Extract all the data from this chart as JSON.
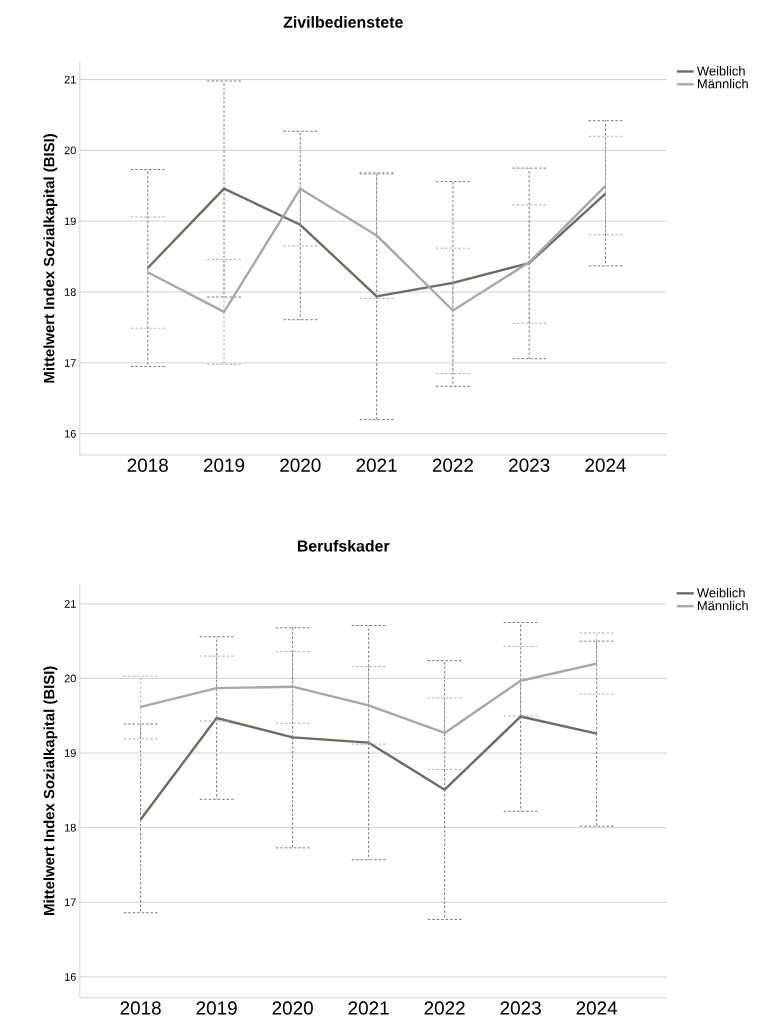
{
  "chart_data": [
    {
      "type": "line",
      "title": "Zivilbedienstete",
      "ylabel": "Mittelwert Index Sozialkapital (BISI)",
      "categories": [
        "2018",
        "2019",
        "2020",
        "2021",
        "2022",
        "2023",
        "2024"
      ],
      "series": [
        {
          "name": "Weiblich",
          "color": "#6b6e5e",
          "values": [
            18.34,
            19.46,
            18.95,
            17.94,
            18.13,
            18.41,
            19.39
          ],
          "errors": [
            [
              16.95,
              19.73
            ],
            [
              17.93,
              20.98
            ],
            [
              17.61,
              20.27
            ],
            [
              16.2,
              19.67
            ],
            [
              16.67,
              19.56
            ],
            [
              17.06,
              19.75
            ],
            [
              18.37,
              20.42
            ]
          ]
        },
        {
          "name": "Männlich",
          "color": "#a7a7ae",
          "values": [
            18.28,
            17.72,
            19.46,
            18.8,
            17.74,
            18.42,
            19.5
          ],
          "errors": [
            [
              17.49,
              19.06
            ],
            [
              16.98,
              18.46
            ],
            [
              18.65,
              20.27
            ],
            [
              17.91,
              19.69
            ],
            [
              16.85,
              18.62
            ],
            [
              17.56,
              19.23
            ],
            [
              18.81,
              20.2
            ]
          ]
        }
      ],
      "ylim": [
        15.7,
        21.25
      ],
      "yticks": [
        16,
        17,
        18,
        19,
        20,
        21
      ],
      "grid": "y",
      "legend": "top right"
    },
    {
      "type": "line",
      "title": "Berufskader",
      "ylabel": "Mittelwert Index Sozialkapital (BISI)",
      "categories": [
        "2018",
        "2019",
        "2020",
        "2021",
        "2022",
        "2023",
        "2024"
      ],
      "series": [
        {
          "name": "Weiblich",
          "color": "#6b6e5e",
          "values": [
            18.11,
            19.47,
            19.21,
            19.14,
            18.51,
            19.49,
            19.26
          ],
          "errors": [
            [
              16.86,
              19.39
            ],
            [
              18.38,
              20.56
            ],
            [
              17.73,
              20.68
            ],
            [
              17.57,
              20.71
            ],
            [
              16.77,
              20.24
            ],
            [
              18.22,
              20.75
            ],
            [
              18.02,
              20.5
            ]
          ]
        },
        {
          "name": "Männlich",
          "color": "#a7a7ae",
          "values": [
            19.62,
            19.87,
            19.89,
            19.64,
            19.27,
            19.97,
            20.2
          ],
          "errors": [
            [
              19.19,
              20.03
            ],
            [
              19.43,
              20.3
            ],
            [
              19.4,
              20.36
            ],
            [
              19.12,
              20.16
            ],
            [
              18.78,
              19.74
            ],
            [
              19.5,
              20.43
            ],
            [
              19.79,
              20.61
            ]
          ]
        }
      ],
      "ylim": [
        15.72,
        21.27
      ],
      "yticks": [
        16,
        17,
        18,
        19,
        20,
        21
      ],
      "grid": "y",
      "legend": "top right"
    }
  ]
}
